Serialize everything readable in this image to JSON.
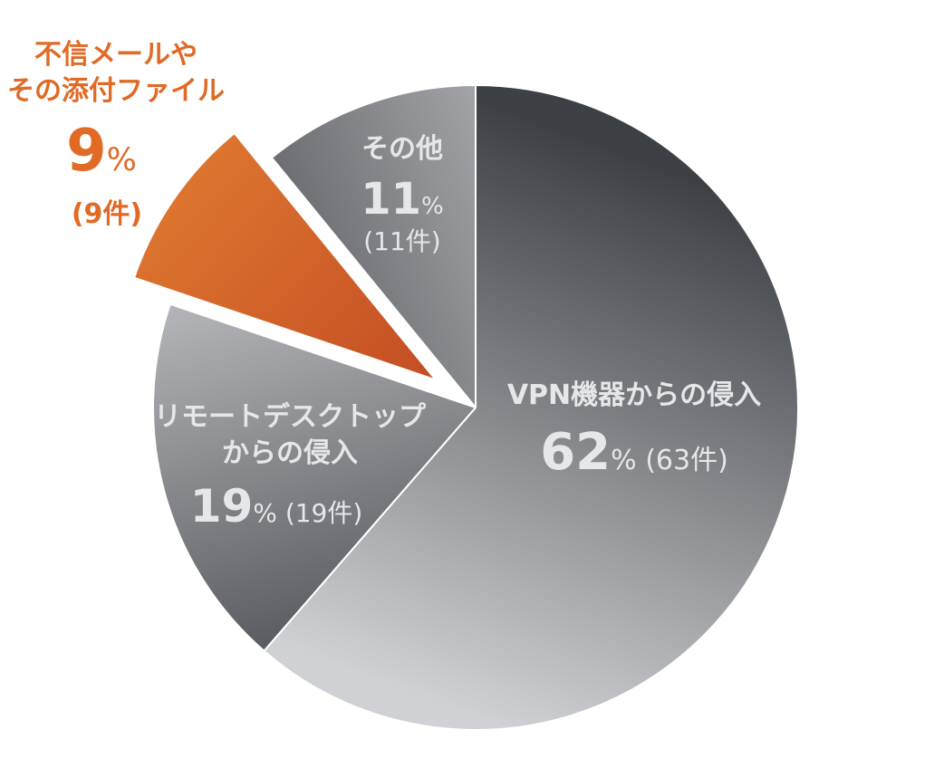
{
  "chart_data": {
    "type": "pie",
    "slices": [
      {
        "name_lines": [
          "VPN機器からの侵入"
        ],
        "value": 62,
        "pct_text": "62",
        "count_text": "(63件)",
        "label_style": "inside",
        "exploded": false
      },
      {
        "name_lines": [
          "リモートデスクトップ",
          "からの侵入"
        ],
        "value": 19,
        "pct_text": "19",
        "count_text": "(19件)",
        "label_style": "inside",
        "exploded": false
      },
      {
        "name_lines": [
          "不信メールや",
          "その添付ファイル"
        ],
        "value": 9,
        "pct_text": "9",
        "count_text": "(9件)",
        "label_style": "outside",
        "exploded": true
      },
      {
        "name_lines": [
          "その他"
        ],
        "value": 11,
        "pct_text": "11",
        "count_text": "(11件)",
        "label_style": "inside",
        "exploded": false
      }
    ],
    "percent_sign": "%",
    "start_angle_deg": 0,
    "direction": "clockwise",
    "colors": {
      "gray_dark": "#3d4045",
      "gray_light": "#d0d1d4",
      "orange_dark": "#c04722",
      "orange_light": "#e07a30",
      "label_light": "#e6e7e9",
      "label_orange": "#e06a26"
    }
  }
}
